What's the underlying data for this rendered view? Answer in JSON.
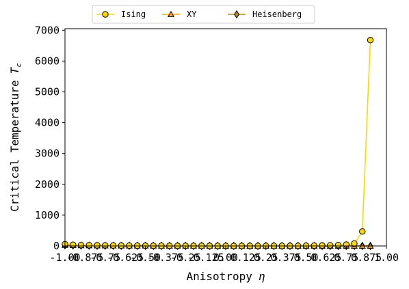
{
  "chart_data": {
    "type": "line",
    "xlabel": "Anisotropy",
    "xlabel_symbol": "η",
    "ylabel": "Critical Temperature",
    "ylabel_symbol": "T",
    "ylabel_subscript": "c",
    "xlim": [
      -1.0,
      1.0
    ],
    "ylim": [
      0,
      7050
    ],
    "x_ticks": [
      -1.0,
      -0.75,
      -0.5,
      -0.25,
      0.0,
      0.25,
      0.5,
      0.75,
      1.0
    ],
    "x_tick_labels": [
      "-1.00",
      "-0.75",
      "-0.50",
      "-0.25",
      "0.00",
      "0.25",
      "0.50",
      "0.75",
      "1.00"
    ],
    "x_minor_ticks": [
      -0.875,
      -0.625,
      -0.375,
      -0.125,
      0.125,
      0.375,
      0.625,
      0.875
    ],
    "x_minor_tick_labels": [
      "-0.875",
      "-0.625",
      "-0.375",
      "-0.125",
      "0.125",
      "0.375",
      "0.625",
      "0.875"
    ],
    "y_ticks": [
      0,
      1000,
      2000,
      3000,
      4000,
      5000,
      6000,
      7000
    ],
    "y_tick_labels": [
      "0",
      "1000",
      "2000",
      "3000",
      "4000",
      "5000",
      "6000",
      "7000"
    ],
    "grid": false,
    "legend_position": "top-center, above plot",
    "x": [
      -1.0,
      -0.95,
      -0.9,
      -0.85,
      -0.8,
      -0.75,
      -0.7,
      -0.65,
      -0.6,
      -0.55,
      -0.5,
      -0.45,
      -0.4,
      -0.35,
      -0.3,
      -0.25,
      -0.2,
      -0.15,
      -0.1,
      -0.05,
      0.0,
      0.05,
      0.1,
      0.15,
      0.2,
      0.25,
      0.3,
      0.35,
      0.4,
      0.45,
      0.5,
      0.55,
      0.6,
      0.65,
      0.7,
      0.75,
      0.8,
      0.85,
      0.9
    ],
    "series": [
      {
        "name": "Ising",
        "color": "#FFD700",
        "marker": "circle",
        "values": [
          60,
          40,
          30,
          25,
          20,
          18,
          15,
          12,
          10,
          9,
          8,
          7,
          6,
          5,
          5,
          4,
          4,
          3,
          3,
          3,
          2,
          2,
          2,
          2,
          2,
          2,
          3,
          3,
          4,
          5,
          7,
          10,
          15,
          20,
          30,
          45,
          80,
          470,
          6680
        ]
      },
      {
        "name": "XY",
        "color": "#FFA500",
        "marker": "triangle",
        "values": [
          25,
          18,
          14,
          11,
          9,
          8,
          7,
          6,
          5,
          4,
          4,
          3,
          3,
          3,
          2,
          2,
          2,
          2,
          1,
          1,
          1,
          1,
          1,
          1,
          1,
          1,
          1,
          1,
          1,
          1,
          1,
          1,
          1,
          1,
          1,
          1,
          1,
          1,
          1
        ]
      },
      {
        "name": "Heisenberg",
        "color": "#B8860B",
        "marker": "diamond",
        "values": [
          20,
          15,
          12,
          10,
          8,
          7,
          6,
          5,
          4,
          4,
          3,
          3,
          3,
          2,
          2,
          2,
          2,
          1,
          1,
          1,
          1,
          1,
          1,
          1,
          1,
          1,
          1,
          1,
          1,
          1,
          1,
          1,
          1,
          1,
          1,
          1,
          1,
          1,
          1
        ]
      }
    ]
  }
}
